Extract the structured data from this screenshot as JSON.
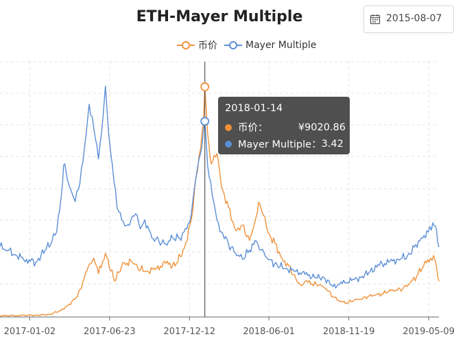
{
  "title": "ETH-Mayer Multiple",
  "date_picker": {
    "value": "2015-08-07",
    "icon": "calendar-icon"
  },
  "legend": [
    {
      "name": "币价",
      "color": "#f0913a"
    },
    {
      "name": "Mayer Multiple",
      "color": "#5b8ed6"
    }
  ],
  "tooltip": {
    "date": "2018-01-14",
    "price_label": "币价：",
    "price_value": "¥9020.86",
    "mm_label": "Mayer Multiple：",
    "mm_value": "3.42"
  },
  "chart_data": {
    "type": "line",
    "title": "ETH-Mayer Multiple",
    "x_tick_labels": [
      "2017-01-02",
      "2017-06-23",
      "2017-12-12",
      "2018-06-01",
      "2018-11-19",
      "2019-05-09"
    ],
    "x_tick_days": [
      427,
      599,
      771,
      942,
      1114,
      1286
    ],
    "crosshair_day": 804,
    "x_range_days": [
      363,
      1308
    ],
    "series": [
      {
        "name": "币价",
        "color": "#f0913a",
        "ylim": [
          0,
          10000
        ],
        "points": [
          [
            363,
            50
          ],
          [
            400,
            60
          ],
          [
            440,
            70
          ],
          [
            470,
            100
          ],
          [
            500,
            300
          ],
          [
            530,
            800
          ],
          [
            550,
            1800
          ],
          [
            565,
            2300
          ],
          [
            575,
            1700
          ],
          [
            590,
            2500
          ],
          [
            610,
            1400
          ],
          [
            625,
            2000
          ],
          [
            645,
            2200
          ],
          [
            660,
            1900
          ],
          [
            680,
            1800
          ],
          [
            700,
            1900
          ],
          [
            720,
            2100
          ],
          [
            740,
            2000
          ],
          [
            760,
            2700
          ],
          [
            775,
            3800
          ],
          [
            785,
            5500
          ],
          [
            795,
            6600
          ],
          [
            800,
            7500
          ],
          [
            804,
            9020
          ],
          [
            810,
            7200
          ],
          [
            818,
            6000
          ],
          [
            830,
            6400
          ],
          [
            840,
            5100
          ],
          [
            855,
            4300
          ],
          [
            870,
            3400
          ],
          [
            885,
            3600
          ],
          [
            900,
            3000
          ],
          [
            910,
            3600
          ],
          [
            920,
            4500
          ],
          [
            930,
            4000
          ],
          [
            940,
            3300
          ],
          [
            955,
            2900
          ],
          [
            970,
            2300
          ],
          [
            985,
            2000
          ],
          [
            1000,
            1500
          ],
          [
            1010,
            1250
          ],
          [
            1020,
            1400
          ],
          [
            1035,
            1300
          ],
          [
            1050,
            1250
          ],
          [
            1065,
            1100
          ],
          [
            1080,
            800
          ],
          [
            1095,
            600
          ],
          [
            1110,
            550
          ],
          [
            1125,
            650
          ],
          [
            1140,
            700
          ],
          [
            1155,
            800
          ],
          [
            1170,
            850
          ],
          [
            1185,
            900
          ],
          [
            1200,
            1000
          ],
          [
            1215,
            1050
          ],
          [
            1230,
            1100
          ],
          [
            1245,
            1300
          ],
          [
            1260,
            1600
          ],
          [
            1275,
            2000
          ],
          [
            1290,
            2300
          ],
          [
            1300,
            2200
          ],
          [
            1308,
            1400
          ]
        ]
      },
      {
        "name": "Mayer Multiple",
        "color": "#5b8ed6",
        "ylim": [
          0.2,
          4.4
        ],
        "points": [
          [
            363,
            1.36
          ],
          [
            380,
            1.3
          ],
          [
            400,
            1.2
          ],
          [
            420,
            1.15
          ],
          [
            440,
            1.1
          ],
          [
            460,
            1.3
          ],
          [
            475,
            1.45
          ],
          [
            485,
            1.6
          ],
          [
            495,
            2.2
          ],
          [
            500,
            2.7
          ],
          [
            505,
            2.6
          ],
          [
            515,
            2.3
          ],
          [
            525,
            2.1
          ],
          [
            535,
            2.4
          ],
          [
            545,
            3.0
          ],
          [
            555,
            3.7
          ],
          [
            565,
            3.3
          ],
          [
            575,
            2.8
          ],
          [
            585,
            3.5
          ],
          [
            590,
            4.0
          ],
          [
            597,
            3.2
          ],
          [
            605,
            2.7
          ],
          [
            615,
            2.0
          ],
          [
            625,
            1.8
          ],
          [
            635,
            1.7
          ],
          [
            645,
            1.8
          ],
          [
            655,
            1.9
          ],
          [
            665,
            1.65
          ],
          [
            675,
            1.8
          ],
          [
            690,
            1.5
          ],
          [
            705,
            1.45
          ],
          [
            720,
            1.4
          ],
          [
            735,
            1.5
          ],
          [
            750,
            1.5
          ],
          [
            765,
            1.65
          ],
          [
            775,
            1.9
          ],
          [
            785,
            2.5
          ],
          [
            795,
            2.9
          ],
          [
            800,
            3.2
          ],
          [
            804,
            3.42
          ],
          [
            810,
            2.7
          ],
          [
            820,
            2.2
          ],
          [
            830,
            1.8
          ],
          [
            840,
            1.6
          ],
          [
            855,
            1.4
          ],
          [
            870,
            1.25
          ],
          [
            885,
            1.15
          ],
          [
            900,
            1.3
          ],
          [
            915,
            1.45
          ],
          [
            925,
            1.3
          ],
          [
            940,
            1.15
          ],
          [
            960,
            1.05
          ],
          [
            980,
            1.0
          ],
          [
            1000,
            0.95
          ],
          [
            1020,
            0.9
          ],
          [
            1040,
            0.85
          ],
          [
            1060,
            0.85
          ],
          [
            1080,
            0.7
          ],
          [
            1100,
            0.75
          ],
          [
            1120,
            0.8
          ],
          [
            1140,
            0.85
          ],
          [
            1160,
            0.95
          ],
          [
            1180,
            1.05
          ],
          [
            1200,
            1.1
          ],
          [
            1220,
            1.15
          ],
          [
            1240,
            1.2
          ],
          [
            1255,
            1.35
          ],
          [
            1270,
            1.5
          ],
          [
            1285,
            1.6
          ],
          [
            1295,
            1.75
          ],
          [
            1300,
            1.7
          ],
          [
            1308,
            1.35
          ]
        ]
      }
    ]
  }
}
